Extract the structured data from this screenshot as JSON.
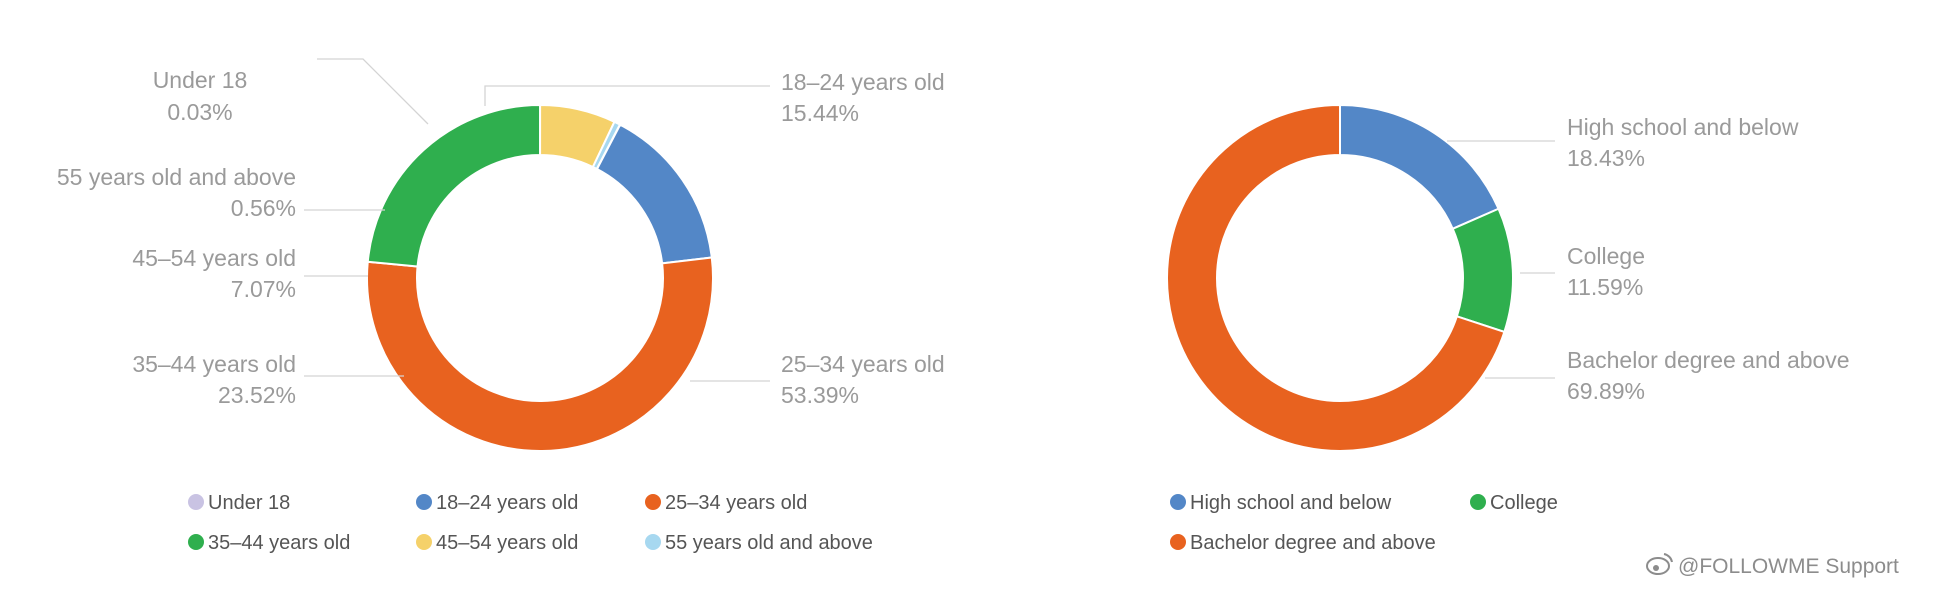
{
  "chart_data": [
    {
      "type": "donut",
      "series": [
        {
          "name": "Under 18",
          "value": 0.03,
          "percent_label": "0.03%",
          "color": "#c9c3e3"
        },
        {
          "name": "18–24 years old",
          "value": 15.44,
          "percent_label": "15.44%",
          "color": "#5387c7"
        },
        {
          "name": "25–34 years old",
          "value": 53.39,
          "percent_label": "53.39%",
          "color": "#e8621f"
        },
        {
          "name": "35–44 years old",
          "value": 23.52,
          "percent_label": "23.52%",
          "color": "#2faf4e"
        },
        {
          "name": "45–54 years old",
          "value": 7.07,
          "percent_label": "7.07%",
          "color": "#f5d16a"
        },
        {
          "name": "55 years old and above",
          "value": 0.56,
          "percent_label": "0.56%",
          "color": "#a7d8f0"
        }
      ],
      "legend_rows": [
        [
          "Under 18",
          "18–24 years old",
          "25–34 years old"
        ],
        [
          "35–44 years old",
          "45–54 years old",
          "55 years old and above"
        ]
      ],
      "legend_placement": "bottom"
    },
    {
      "type": "donut",
      "series": [
        {
          "name": "High school and below",
          "value": 18.43,
          "percent_label": "18.43%",
          "color": "#5387c7"
        },
        {
          "name": "College",
          "value": 11.59,
          "percent_label": "11.59%",
          "color": "#2faf4e"
        },
        {
          "name": "Bachelor degree and above",
          "value": 69.89,
          "percent_label": "69.89%",
          "color": "#e8621f"
        }
      ],
      "legend_rows": [
        [
          "High school and below",
          "College"
        ],
        [
          "Bachelor degree and above"
        ]
      ],
      "legend_placement": "bottom"
    }
  ],
  "watermark": {
    "text": "@FOLLOWME Support"
  }
}
